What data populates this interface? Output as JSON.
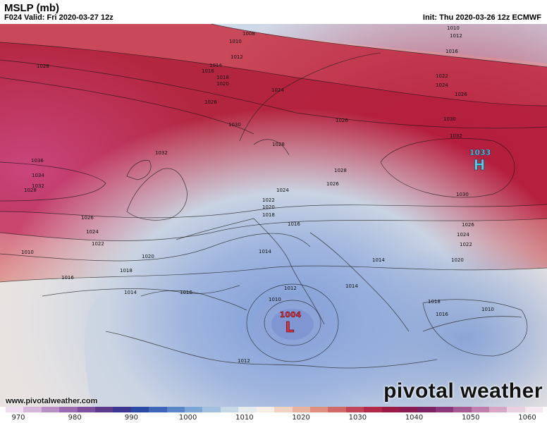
{
  "header": {
    "title": "MSLP (mb)",
    "valid": "F024 Valid: Fri 2020-03-27 12z",
    "init": "Init: Thu 2020-03-26 12z ECMWF"
  },
  "footer": {
    "url": "www.pivotalweather.com",
    "logo": "pivotal weather"
  },
  "centers": [
    {
      "type": "H",
      "value": "1033",
      "color": "#4fd0e8"
    },
    {
      "type": "L",
      "value": "1004",
      "color": "#e0303a"
    }
  ],
  "isobar_labels": [
    "1008",
    "1010",
    "1010",
    "1012",
    "1012",
    "1014",
    "1016",
    "1016",
    "1018",
    "1020",
    "1022",
    "1024",
    "1024",
    "1026",
    "1026",
    "1026",
    "1028",
    "1028",
    "1030",
    "1030",
    "1032",
    "1032",
    "1034",
    "1036",
    "1028",
    "1026",
    "1024",
    "1022",
    "1020",
    "1018",
    "1016",
    "1014",
    "1016",
    "1014",
    "1012",
    "1010",
    "1010",
    "1012",
    "1014",
    "1010",
    "1016",
    "1018",
    "1020",
    "1022",
    "1024",
    "1026",
    "1028",
    "1030",
    "1032",
    "1026",
    "1024",
    "1022",
    "1020",
    "1018",
    "1016",
    "1014"
  ],
  "colorbar": {
    "ticks": [
      "970",
      "980",
      "990",
      "1000",
      "1010",
      "1020",
      "1030",
      "1040",
      "1050",
      "1060"
    ],
    "colors": [
      "#f1ddf1",
      "#d7b6dc",
      "#b98ec4",
      "#9a6bb0",
      "#7d4f9c",
      "#5d3a8a",
      "#3d3690",
      "#2a49a3",
      "#3d66b8",
      "#5a86c8",
      "#7da5d6",
      "#a3c0e0",
      "#c6d7e6",
      "#e6ebee",
      "#f7eee8",
      "#f2d3c3",
      "#e9b3a0",
      "#de8f80",
      "#d06a68",
      "#c14558",
      "#b12848",
      "#9b1a44",
      "#8a1a52",
      "#7a2262",
      "#8a3a7a",
      "#a45a92",
      "#c07fac",
      "#d8a6c6",
      "#ead0e0",
      "#f6e8f0"
    ]
  }
}
